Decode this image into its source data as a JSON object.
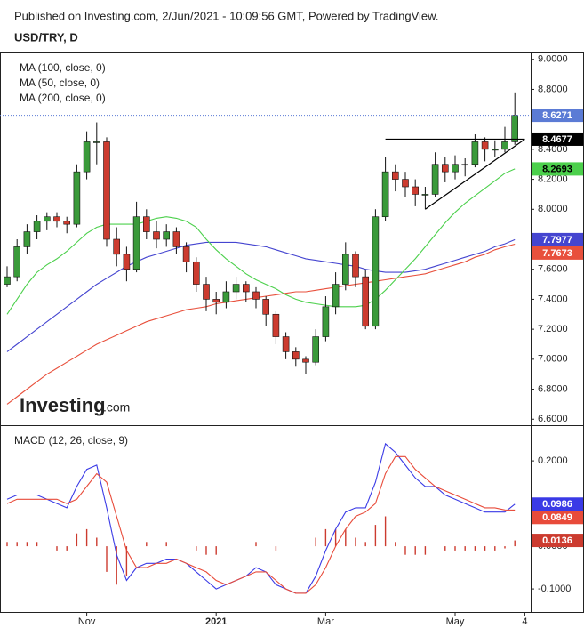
{
  "header": "Published on Investing.com, 2/Jun/2021 - 10:09:56 GMT, Powered by TradingView.",
  "logo": {
    "name": "Investing",
    "suffix": ".com"
  },
  "chart_data": [
    {
      "type": "candlestick",
      "title": "USD/TRY, D",
      "ylim": [
        6.56,
        9.04
      ],
      "yticks": [
        {
          "value": 6.6,
          "label": "6.6000"
        },
        {
          "value": 6.8,
          "label": "6.8000"
        },
        {
          "value": 7.0,
          "label": "7.0000"
        },
        {
          "value": 7.2,
          "label": "7.2000"
        },
        {
          "value": 7.4,
          "label": "7.4000"
        },
        {
          "value": 7.6,
          "label": "7.6000"
        },
        {
          "value": 7.8,
          "label": "7.8000"
        },
        {
          "value": 8.0,
          "label": "8.0000"
        },
        {
          "value": 8.2,
          "label": "8.2000"
        },
        {
          "value": 8.4,
          "label": "8.4000"
        },
        {
          "value": 8.6,
          "label": "8.6000"
        },
        {
          "value": 8.8,
          "label": "8.8000"
        },
        {
          "value": 9.0,
          "label": "9.0000"
        }
      ],
      "candle_colors": {
        "up": "#3a9a3a",
        "down": "#cc3b2f"
      },
      "last_color": "#5b7bd5",
      "candles": [
        [
          7.5,
          7.62,
          7.48,
          7.55
        ],
        [
          7.55,
          7.8,
          7.52,
          7.75
        ],
        [
          7.75,
          7.9,
          7.7,
          7.85
        ],
        [
          7.85,
          7.96,
          7.8,
          7.92
        ],
        [
          7.92,
          7.98,
          7.86,
          7.95
        ],
        [
          7.95,
          7.98,
          7.88,
          7.92
        ],
        [
          7.92,
          7.95,
          7.84,
          7.9
        ],
        [
          7.9,
          8.3,
          7.88,
          8.25
        ],
        [
          8.25,
          8.52,
          8.2,
          8.45
        ],
        [
          8.45,
          8.58,
          8.3,
          8.45
        ],
        [
          8.45,
          8.48,
          7.75,
          7.8
        ],
        [
          7.8,
          7.88,
          7.62,
          7.7
        ],
        [
          7.7,
          7.75,
          7.52,
          7.6
        ],
        [
          7.6,
          8.05,
          7.58,
          7.95
        ],
        [
          7.95,
          8.0,
          7.8,
          7.85
        ],
        [
          7.85,
          7.92,
          7.74,
          7.8
        ],
        [
          7.8,
          7.9,
          7.75,
          7.85
        ],
        [
          7.85,
          7.88,
          7.7,
          7.75
        ],
        [
          7.75,
          7.78,
          7.58,
          7.65
        ],
        [
          7.65,
          7.68,
          7.45,
          7.5
        ],
        [
          7.5,
          7.55,
          7.32,
          7.4
        ],
        [
          7.4,
          7.45,
          7.3,
          7.38
        ],
        [
          7.38,
          7.52,
          7.34,
          7.45
        ],
        [
          7.45,
          7.55,
          7.4,
          7.5
        ],
        [
          7.5,
          7.52,
          7.38,
          7.45
        ],
        [
          7.45,
          7.48,
          7.34,
          7.4
        ],
        [
          7.4,
          7.42,
          7.22,
          7.3
        ],
        [
          7.3,
          7.32,
          7.1,
          7.15
        ],
        [
          7.15,
          7.18,
          7.0,
          7.05
        ],
        [
          7.05,
          7.08,
          6.95,
          7.0
        ],
        [
          7.0,
          7.02,
          6.9,
          6.98
        ],
        [
          6.98,
          7.2,
          6.96,
          7.15
        ],
        [
          7.15,
          7.42,
          7.12,
          7.35
        ],
        [
          7.35,
          7.58,
          7.3,
          7.5
        ],
        [
          7.5,
          7.78,
          7.46,
          7.7
        ],
        [
          7.7,
          7.72,
          7.48,
          7.55
        ],
        [
          7.55,
          7.6,
          7.2,
          7.22
        ],
        [
          7.22,
          8.0,
          7.2,
          7.95
        ],
        [
          7.95,
          8.35,
          7.92,
          8.25
        ],
        [
          8.25,
          8.3,
          8.12,
          8.2
        ],
        [
          8.2,
          8.25,
          8.08,
          8.15
        ],
        [
          8.15,
          8.2,
          8.02,
          8.1
        ],
        [
          8.1,
          8.15,
          8.0,
          8.1
        ],
        [
          8.1,
          8.38,
          8.08,
          8.3
        ],
        [
          8.3,
          8.35,
          8.18,
          8.25
        ],
        [
          8.25,
          8.36,
          8.2,
          8.3
        ],
        [
          8.3,
          8.34,
          8.22,
          8.3
        ],
        [
          8.3,
          8.5,
          8.28,
          8.45
        ],
        [
          8.45,
          8.48,
          8.32,
          8.4
        ],
        [
          8.4,
          8.46,
          8.35,
          8.4
        ],
        [
          8.4,
          8.55,
          8.38,
          8.45
        ],
        [
          8.45,
          8.78,
          8.43,
          8.6271
        ],
        null
      ],
      "series": [
        {
          "name": "MA (100, close, 0)",
          "color": "#4545d0",
          "values": [
            7.05,
            7.1,
            7.15,
            7.2,
            7.25,
            7.3,
            7.35,
            7.4,
            7.45,
            7.5,
            7.54,
            7.58,
            7.62,
            7.65,
            7.68,
            7.7,
            7.72,
            7.74,
            7.76,
            7.77,
            7.78,
            7.78,
            7.78,
            7.78,
            7.77,
            7.76,
            7.75,
            7.73,
            7.71,
            7.69,
            7.67,
            7.66,
            7.65,
            7.64,
            7.63,
            7.62,
            7.6,
            7.59,
            7.58,
            7.58,
            7.58,
            7.59,
            7.6,
            7.62,
            7.64,
            7.66,
            7.68,
            7.7,
            7.72,
            7.75,
            7.77,
            7.7977,
            null
          ]
        },
        {
          "name": "MA (50, close, 0)",
          "color": "#4cd04c",
          "values": [
            7.3,
            7.4,
            7.5,
            7.58,
            7.63,
            7.67,
            7.72,
            7.78,
            7.84,
            7.88,
            7.9,
            7.9,
            7.9,
            7.9,
            7.92,
            7.94,
            7.95,
            7.94,
            7.92,
            7.88,
            7.8,
            7.73,
            7.67,
            7.62,
            7.57,
            7.53,
            7.5,
            7.47,
            7.43,
            7.4,
            7.38,
            7.37,
            7.36,
            7.35,
            7.35,
            7.35,
            7.36,
            7.4,
            7.46,
            7.53,
            7.6,
            7.67,
            7.75,
            7.83,
            7.91,
            7.98,
            8.04,
            8.09,
            8.14,
            8.19,
            8.24,
            8.2693,
            null
          ]
        },
        {
          "name": "MA (200, close, 0)",
          "color": "#e8503c",
          "values": [
            6.7,
            6.75,
            6.8,
            6.85,
            6.9,
            6.94,
            6.98,
            7.02,
            7.06,
            7.1,
            7.13,
            7.16,
            7.19,
            7.22,
            7.25,
            7.27,
            7.29,
            7.31,
            7.33,
            7.34,
            7.35,
            7.37,
            7.38,
            7.39,
            7.4,
            7.41,
            7.42,
            7.43,
            7.44,
            7.45,
            7.45,
            7.46,
            7.47,
            7.48,
            7.49,
            7.5,
            7.51,
            7.52,
            7.53,
            7.54,
            7.55,
            7.56,
            7.57,
            7.59,
            7.61,
            7.63,
            7.65,
            7.68,
            7.7,
            7.73,
            7.75,
            7.7673,
            null
          ]
        }
      ],
      "trendlines": [
        {
          "x": [
            38,
            52
          ],
          "y": [
            8.4677,
            8.4677
          ],
          "color": "#000000"
        },
        {
          "x": [
            42,
            52
          ],
          "y": [
            8.0,
            8.4677
          ],
          "color": "#000000"
        }
      ]
    },
    {
      "type": "macd",
      "title": "MACD (12, 26, close, 9)",
      "ylim": [
        -0.154,
        0.269
      ],
      "yticks": [
        {
          "value": -0.1,
          "label": "-0.1000"
        },
        {
          "value": 0,
          "label": "0.0000"
        },
        {
          "value": 0.1,
          "label": "0.1000"
        },
        {
          "value": 0.2,
          "label": "0.2000"
        }
      ],
      "categories": [
        null,
        null,
        null,
        null,
        null,
        null,
        null,
        null,
        "Nov",
        null,
        null,
        null,
        null,
        null,
        null,
        null,
        null,
        null,
        null,
        null,
        null,
        "2021",
        null,
        null,
        null,
        null,
        null,
        null,
        null,
        null,
        null,
        null,
        "Mar",
        null,
        null,
        null,
        null,
        null,
        null,
        null,
        null,
        null,
        null,
        null,
        null,
        "May",
        null,
        null,
        null,
        null,
        null,
        null,
        "4"
      ],
      "series": [
        {
          "color": "#3a3ae6",
          "values": [
            0.11,
            0.12,
            0.12,
            0.12,
            0.11,
            0.1,
            0.09,
            0.14,
            0.18,
            0.19,
            0.09,
            -0.02,
            -0.08,
            -0.05,
            -0.04,
            -0.04,
            -0.03,
            -0.03,
            -0.04,
            -0.06,
            -0.08,
            -0.1,
            -0.09,
            -0.08,
            -0.07,
            -0.05,
            -0.06,
            -0.09,
            -0.1,
            -0.11,
            -0.11,
            -0.07,
            -0.01,
            0.04,
            0.08,
            0.09,
            0.09,
            0.15,
            0.24,
            0.22,
            0.19,
            0.16,
            0.14,
            0.14,
            0.12,
            0.11,
            0.1,
            0.09,
            0.08,
            0.08,
            0.08,
            0.0986,
            null
          ]
        },
        {
          "color": "#e84b3a",
          "values": [
            0.1,
            0.11,
            0.11,
            0.11,
            0.11,
            0.11,
            0.1,
            0.11,
            0.14,
            0.17,
            0.15,
            0.07,
            -0.01,
            -0.05,
            -0.05,
            -0.04,
            -0.04,
            -0.03,
            -0.04,
            -0.05,
            -0.06,
            -0.08,
            -0.09,
            -0.08,
            -0.07,
            -0.06,
            -0.06,
            -0.08,
            -0.1,
            -0.11,
            -0.11,
            -0.09,
            -0.05,
            0.0,
            0.04,
            0.07,
            0.08,
            0.1,
            0.17,
            0.21,
            0.21,
            0.18,
            0.16,
            0.14,
            0.13,
            0.12,
            0.11,
            0.1,
            0.09,
            0.09,
            0.085,
            0.0849,
            null
          ]
        }
      ],
      "histogram": {
        "color": "#cc3b2f",
        "values": [
          0.01,
          0.01,
          0.01,
          0.01,
          0.0,
          -0.01,
          -0.01,
          0.03,
          0.04,
          0.02,
          -0.06,
          -0.09,
          -0.07,
          0.0,
          0.01,
          0.0,
          0.01,
          0.0,
          0.0,
          -0.01,
          -0.02,
          -0.02,
          0.0,
          0.0,
          0.0,
          0.01,
          0.0,
          -0.01,
          0.0,
          0.0,
          0.0,
          0.02,
          0.04,
          0.04,
          0.04,
          0.02,
          0.01,
          0.05,
          0.07,
          0.01,
          -0.02,
          -0.02,
          -0.02,
          0.0,
          -0.01,
          -0.01,
          -0.01,
          -0.01,
          -0.01,
          -0.01,
          -0.005,
          0.0136,
          null
        ]
      }
    }
  ]
}
